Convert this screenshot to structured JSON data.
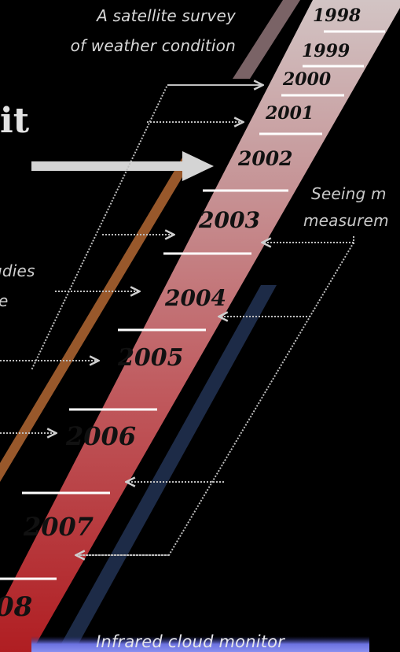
{
  "heading": "it",
  "captions": {
    "top_line1": "A satellite survey",
    "top_line2": "of weather condition",
    "right_line1": "Seeing m",
    "right_line2": "measurem",
    "left_line1": "udies",
    "left_line2": "te",
    "bottom": "Infrared cloud monitor"
  },
  "years": [
    "1998",
    "1999",
    "2000",
    "2001",
    "2002",
    "2003",
    "2004",
    "2005",
    "2006",
    "2007",
    "08"
  ],
  "colors": {
    "background": "#000000",
    "band_top": "#c9b6b6",
    "band_bottom": "#b52326",
    "orange_band": "#9a5a2c",
    "blue_band": "#1d2c48",
    "bottom_glow": "#7e84e8"
  }
}
